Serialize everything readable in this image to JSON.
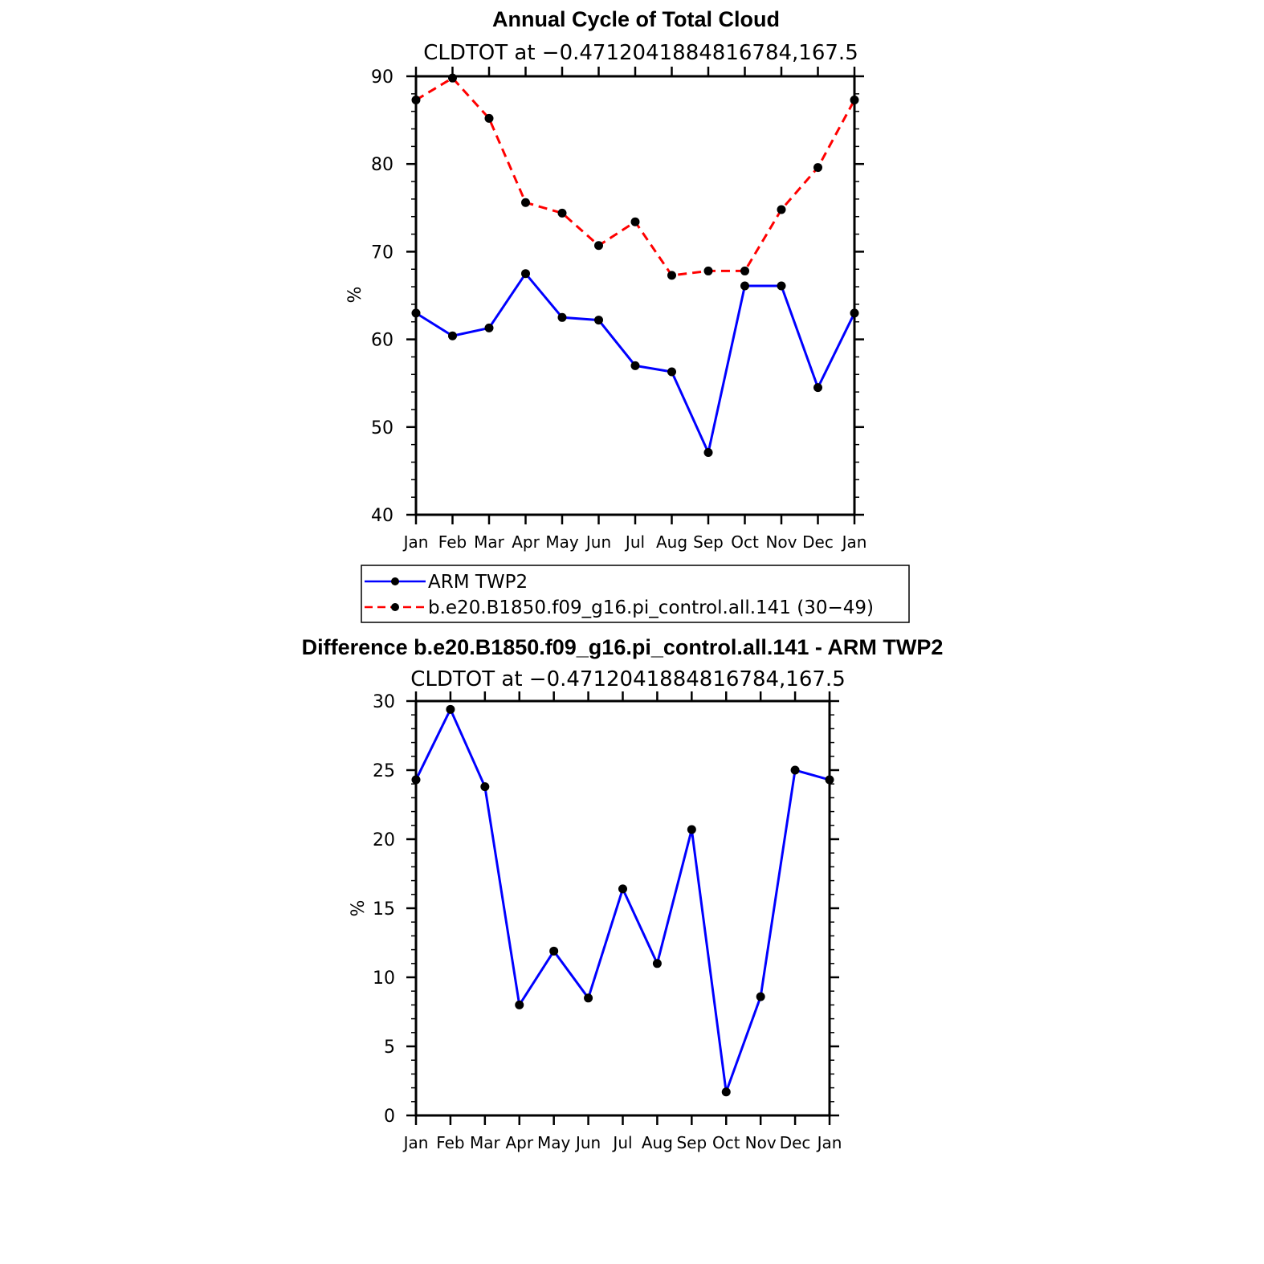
{
  "chart_data": [
    {
      "type": "line",
      "title": "Annual Cycle of Total Cloud",
      "subtitle": "CLDTOT at −0.4712041884816784,167.5",
      "xlabel": "",
      "ylabel": "%",
      "ylim": [
        40,
        90
      ],
      "yticks": [
        "40",
        "50",
        "60",
        "70",
        "80",
        "90"
      ],
      "categories": [
        "Jan",
        "Feb",
        "Mar",
        "Apr",
        "May",
        "Jun",
        "Jul",
        "Aug",
        "Sep",
        "Oct",
        "Nov",
        "Dec",
        "Jan"
      ],
      "series": [
        {
          "name": "ARM TWP2",
          "color": "#0000ff",
          "dash": "solid",
          "values": [
            63.0,
            60.4,
            61.3,
            67.5,
            62.5,
            62.2,
            57.0,
            56.3,
            47.1,
            66.1,
            66.1,
            54.5,
            63.0
          ]
        },
        {
          "name": "b.e20.B1850.f09_g16.pi_control.all.141 (30−49)",
          "color": "#ff0000",
          "dash": "dashed",
          "values": [
            87.3,
            89.8,
            85.2,
            75.6,
            74.4,
            70.7,
            73.4,
            67.3,
            67.8,
            67.8,
            74.8,
            79.6,
            87.3
          ]
        }
      ],
      "legend_position": "bottom"
    },
    {
      "type": "line",
      "title": "Difference b.e20.B1850.f09_g16.pi_control.all.141 - ARM TWP2",
      "subtitle": "CLDTOT at −0.4712041884816784,167.5",
      "xlabel": "",
      "ylabel": "%",
      "ylim": [
        0,
        30
      ],
      "yticks": [
        "0",
        "5",
        "10",
        "15",
        "20",
        "25",
        "30"
      ],
      "categories": [
        "Jan",
        "Feb",
        "Mar",
        "Apr",
        "May",
        "Jun",
        "Jul",
        "Aug",
        "Sep",
        "Oct",
        "Nov",
        "Dec",
        "Jan"
      ],
      "series": [
        {
          "name": "Difference",
          "color": "#0000ff",
          "dash": "solid",
          "values": [
            24.3,
            29.4,
            23.8,
            8.0,
            11.9,
            8.5,
            16.4,
            11.0,
            20.7,
            1.7,
            8.6,
            25.0,
            24.3
          ]
        }
      ]
    }
  ]
}
